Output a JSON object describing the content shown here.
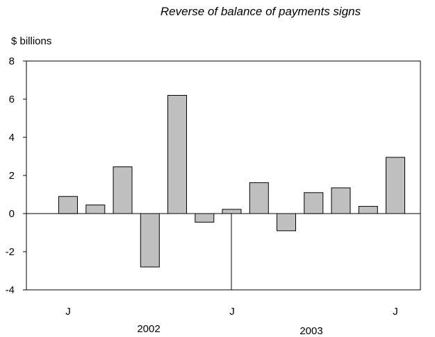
{
  "chart_data": {
    "type": "bar",
    "title": "Reverse of balance of payments signs",
    "ylabel": "$ billions",
    "xlabel": "",
    "ylim": [
      -4,
      8
    ],
    "yticks": [
      "8",
      "6",
      "4",
      "2",
      "0",
      "-2",
      "-4"
    ],
    "grid": false,
    "legend": "none",
    "bar_color": "#c0c0c0",
    "categories": [
      "2002-M1",
      "2002-M2",
      "2002-M3",
      "2002-M4",
      "2002-M5",
      "2002-M6",
      "2002-M7",
      "2002-M8",
      "2002-M9",
      "2002-M10",
      "2002-M11",
      "2002-M12",
      "2003-M1"
    ],
    "values": [
      0.9,
      0.45,
      2.45,
      -2.8,
      6.2,
      -0.45,
      0.22,
      1.62,
      -0.9,
      1.1,
      1.35,
      0.38,
      2.95
    ],
    "month_labels": [
      "J",
      "J",
      "J"
    ],
    "year_labels": [
      "2002",
      "2003"
    ]
  }
}
